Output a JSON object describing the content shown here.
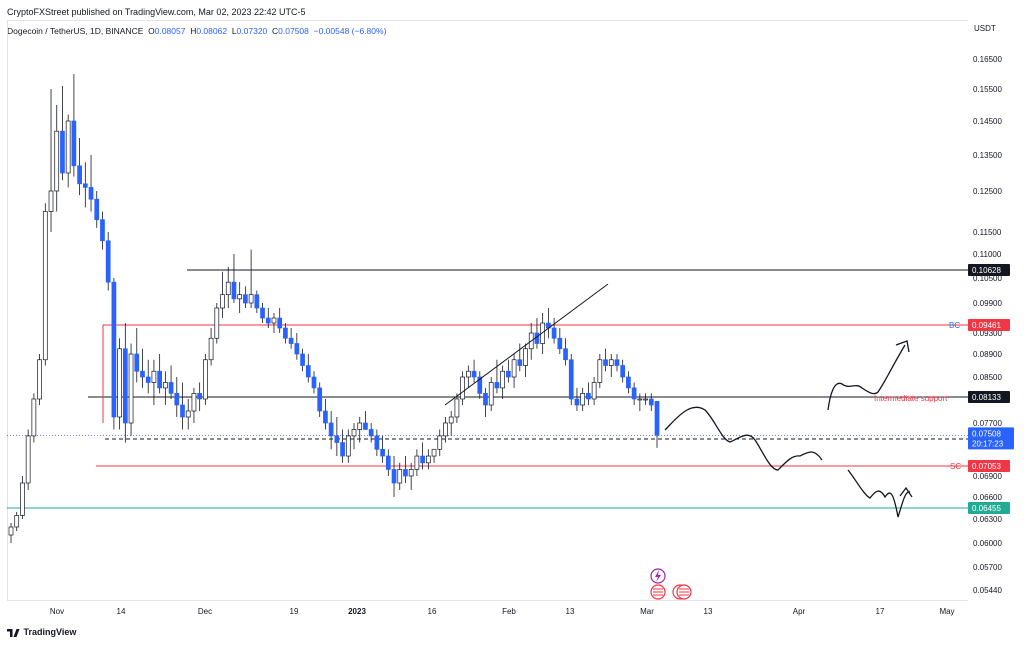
{
  "header": {
    "publisher_line": "CryptoFXStreet published on TradingView.com, Mar 02, 2023 22:42 UTC-5"
  },
  "legend": {
    "symbol": "Dogecoin / TetherUS, 1D, BINANCE",
    "open_label": "O",
    "open": "0.08057",
    "high_label": "H",
    "high": "0.08062",
    "low_label": "L",
    "low": "0.07320",
    "close_label": "C",
    "close": "0.07508",
    "change": "−0.00548 (−6.80%)"
  },
  "footer": {
    "brand": "TradingView"
  },
  "chart_data": {
    "type": "candlestick",
    "currency_label": "USDT",
    "y_ticks": [
      "0.16500",
      "0.15500",
      "0.14500",
      "0.13500",
      "0.12500",
      "0.11500",
      "0.11000",
      "0.10500",
      "0.09900",
      "0.09300",
      "0.08900",
      "0.08500",
      "0.07700",
      "0.06900",
      "0.06600",
      "0.06300",
      "0.06000",
      "0.05700",
      "0.05440"
    ],
    "x_ticks": [
      "Nov",
      "14",
      "Dec",
      "19",
      "2023",
      "16",
      "Feb",
      "13",
      "Mar",
      "13",
      "Apr",
      "17",
      "May"
    ],
    "horizontal_levels": [
      {
        "value": 0.10628,
        "label": "0.10628",
        "color": "#131722"
      },
      {
        "value": 0.09461,
        "label": "0.09461",
        "color": "#f23645",
        "tag": "BC"
      },
      {
        "value": 0.08133,
        "label": "0.08133",
        "color": "#131722",
        "tag": "Intermediate support"
      },
      {
        "value": 0.07452,
        "label": "0.07452",
        "color": "#131722",
        "style": "dashed"
      },
      {
        "value": 0.07053,
        "label": "0.07053",
        "color": "#f23645",
        "tag": "SC"
      },
      {
        "value": 0.06455,
        "label": "0.06455",
        "color": "#22ab94"
      }
    ],
    "last_price": {
      "value": "0.07508",
      "countdown": "20:17:23",
      "color": "#2962ff"
    },
    "annotations": [
      "BC",
      "Intermediate support",
      "SC"
    ],
    "candles_description": "Daily DOGE/USDT candles from late Oct 2022 to Mar 02 2023",
    "ohlc": [
      [
        0.061,
        0.0625,
        0.06,
        0.062
      ],
      [
        0.062,
        0.064,
        0.0615,
        0.0635
      ],
      [
        0.0635,
        0.069,
        0.063,
        0.068
      ],
      [
        0.068,
        0.076,
        0.067,
        0.075
      ],
      [
        0.075,
        0.082,
        0.074,
        0.081
      ],
      [
        0.081,
        0.089,
        0.08,
        0.088
      ],
      [
        0.088,
        0.122,
        0.087,
        0.12
      ],
      [
        0.12,
        0.155,
        0.115,
        0.125
      ],
      [
        0.125,
        0.15,
        0.12,
        0.142
      ],
      [
        0.142,
        0.156,
        0.128,
        0.13
      ],
      [
        0.13,
        0.147,
        0.126,
        0.145
      ],
      [
        0.145,
        0.16,
        0.129,
        0.132
      ],
      [
        0.132,
        0.14,
        0.124,
        0.127
      ],
      [
        0.127,
        0.133,
        0.121,
        0.126
      ],
      [
        0.126,
        0.135,
        0.12,
        0.123
      ],
      [
        0.123,
        0.125,
        0.116,
        0.118
      ],
      [
        0.118,
        0.12,
        0.111,
        0.113
      ],
      [
        0.113,
        0.115,
        0.102,
        0.104
      ],
      [
        0.104,
        0.105,
        0.076,
        0.078
      ],
      [
        0.078,
        0.092,
        0.076,
        0.09
      ],
      [
        0.09,
        0.095,
        0.074,
        0.077
      ],
      [
        0.077,
        0.091,
        0.075,
        0.089
      ],
      [
        0.089,
        0.094,
        0.084,
        0.086
      ],
      [
        0.086,
        0.09,
        0.083,
        0.085
      ],
      [
        0.085,
        0.088,
        0.082,
        0.084
      ],
      [
        0.084,
        0.088,
        0.08,
        0.086
      ],
      [
        0.086,
        0.089,
        0.082,
        0.083
      ],
      [
        0.083,
        0.086,
        0.08,
        0.084
      ],
      [
        0.084,
        0.087,
        0.081,
        0.082
      ],
      [
        0.082,
        0.085,
        0.078,
        0.08
      ],
      [
        0.08,
        0.084,
        0.076,
        0.078
      ],
      [
        0.078,
        0.081,
        0.076,
        0.079
      ],
      [
        0.079,
        0.083,
        0.077,
        0.082
      ],
      [
        0.082,
        0.084,
        0.079,
        0.081
      ],
      [
        0.081,
        0.089,
        0.08,
        0.088
      ],
      [
        0.088,
        0.094,
        0.087,
        0.092
      ],
      [
        0.092,
        0.099,
        0.091,
        0.098
      ],
      [
        0.098,
        0.106,
        0.096,
        0.101
      ],
      [
        0.101,
        0.107,
        0.098,
        0.104
      ],
      [
        0.104,
        0.11,
        0.099,
        0.1
      ],
      [
        0.1,
        0.104,
        0.097,
        0.101
      ],
      [
        0.101,
        0.103,
        0.098,
        0.099
      ],
      [
        0.099,
        0.111,
        0.098,
        0.101
      ],
      [
        0.101,
        0.102,
        0.097,
        0.098
      ],
      [
        0.098,
        0.099,
        0.095,
        0.096
      ],
      [
        0.096,
        0.098,
        0.094,
        0.095
      ],
      [
        0.095,
        0.097,
        0.093,
        0.096
      ],
      [
        0.096,
        0.098,
        0.093,
        0.094
      ],
      [
        0.094,
        0.095,
        0.091,
        0.092
      ],
      [
        0.092,
        0.094,
        0.09,
        0.091
      ],
      [
        0.091,
        0.093,
        0.088,
        0.089
      ],
      [
        0.089,
        0.09,
        0.086,
        0.087
      ],
      [
        0.087,
        0.089,
        0.084,
        0.085
      ],
      [
        0.085,
        0.086,
        0.082,
        0.083
      ],
      [
        0.083,
        0.084,
        0.078,
        0.079
      ],
      [
        0.079,
        0.081,
        0.076,
        0.077
      ],
      [
        0.077,
        0.079,
        0.073,
        0.075
      ],
      [
        0.075,
        0.078,
        0.072,
        0.074
      ],
      [
        0.074,
        0.076,
        0.071,
        0.072
      ],
      [
        0.072,
        0.076,
        0.071,
        0.075
      ],
      [
        0.075,
        0.077,
        0.073,
        0.076
      ],
      [
        0.076,
        0.078,
        0.074,
        0.077
      ],
      [
        0.077,
        0.079,
        0.076,
        0.076
      ],
      [
        0.076,
        0.077,
        0.074,
        0.075
      ],
      [
        0.075,
        0.076,
        0.072,
        0.073
      ],
      [
        0.073,
        0.075,
        0.071,
        0.072
      ],
      [
        0.072,
        0.073,
        0.069,
        0.07
      ],
      [
        0.07,
        0.072,
        0.066,
        0.068
      ],
      [
        0.068,
        0.071,
        0.067,
        0.07
      ],
      [
        0.07,
        0.072,
        0.068,
        0.069
      ],
      [
        0.069,
        0.071,
        0.067,
        0.07
      ],
      [
        0.07,
        0.073,
        0.069,
        0.072
      ],
      [
        0.072,
        0.074,
        0.07,
        0.071
      ],
      [
        0.071,
        0.073,
        0.07,
        0.072
      ],
      [
        0.072,
        0.073,
        0.071,
        0.073
      ],
      [
        0.073,
        0.076,
        0.072,
        0.075
      ],
      [
        0.075,
        0.078,
        0.074,
        0.077
      ],
      [
        0.077,
        0.079,
        0.075,
        0.078
      ],
      [
        0.078,
        0.082,
        0.077,
        0.081
      ],
      [
        0.081,
        0.086,
        0.08,
        0.085
      ],
      [
        0.085,
        0.087,
        0.083,
        0.086
      ],
      [
        0.086,
        0.088,
        0.084,
        0.085
      ],
      [
        0.085,
        0.086,
        0.081,
        0.082
      ],
      [
        0.082,
        0.083,
        0.078,
        0.08
      ],
      [
        0.08,
        0.085,
        0.079,
        0.084
      ],
      [
        0.084,
        0.088,
        0.082,
        0.083
      ],
      [
        0.083,
        0.087,
        0.081,
        0.086
      ],
      [
        0.086,
        0.088,
        0.084,
        0.085
      ],
      [
        0.085,
        0.089,
        0.083,
        0.088
      ],
      [
        0.088,
        0.091,
        0.086,
        0.087
      ],
      [
        0.087,
        0.091,
        0.085,
        0.09
      ],
      [
        0.09,
        0.095,
        0.088,
        0.093
      ],
      [
        0.093,
        0.096,
        0.09,
        0.091
      ],
      [
        0.091,
        0.097,
        0.089,
        0.095
      ],
      [
        0.095,
        0.098,
        0.092,
        0.094
      ],
      [
        0.094,
        0.096,
        0.091,
        0.092
      ],
      [
        0.092,
        0.094,
        0.089,
        0.09
      ],
      [
        0.09,
        0.092,
        0.087,
        0.088
      ],
      [
        0.088,
        0.089,
        0.08,
        0.081
      ],
      [
        0.081,
        0.083,
        0.079,
        0.08
      ],
      [
        0.08,
        0.083,
        0.079,
        0.082
      ],
      [
        0.082,
        0.084,
        0.08,
        0.081
      ],
      [
        0.081,
        0.085,
        0.08,
        0.084
      ],
      [
        0.084,
        0.089,
        0.083,
        0.088
      ],
      [
        0.088,
        0.09,
        0.086,
        0.087
      ],
      [
        0.087,
        0.089,
        0.085,
        0.088
      ],
      [
        0.088,
        0.089,
        0.086,
        0.087
      ],
      [
        0.087,
        0.088,
        0.084,
        0.085
      ],
      [
        0.085,
        0.086,
        0.082,
        0.083
      ],
      [
        0.083,
        0.084,
        0.08,
        0.081
      ],
      [
        0.081,
        0.082,
        0.079,
        0.081
      ],
      [
        0.081,
        0.082,
        0.08,
        0.081
      ],
      [
        0.081,
        0.082,
        0.079,
        0.08
      ],
      [
        0.0806,
        0.0806,
        0.0732,
        0.0751
      ]
    ]
  }
}
